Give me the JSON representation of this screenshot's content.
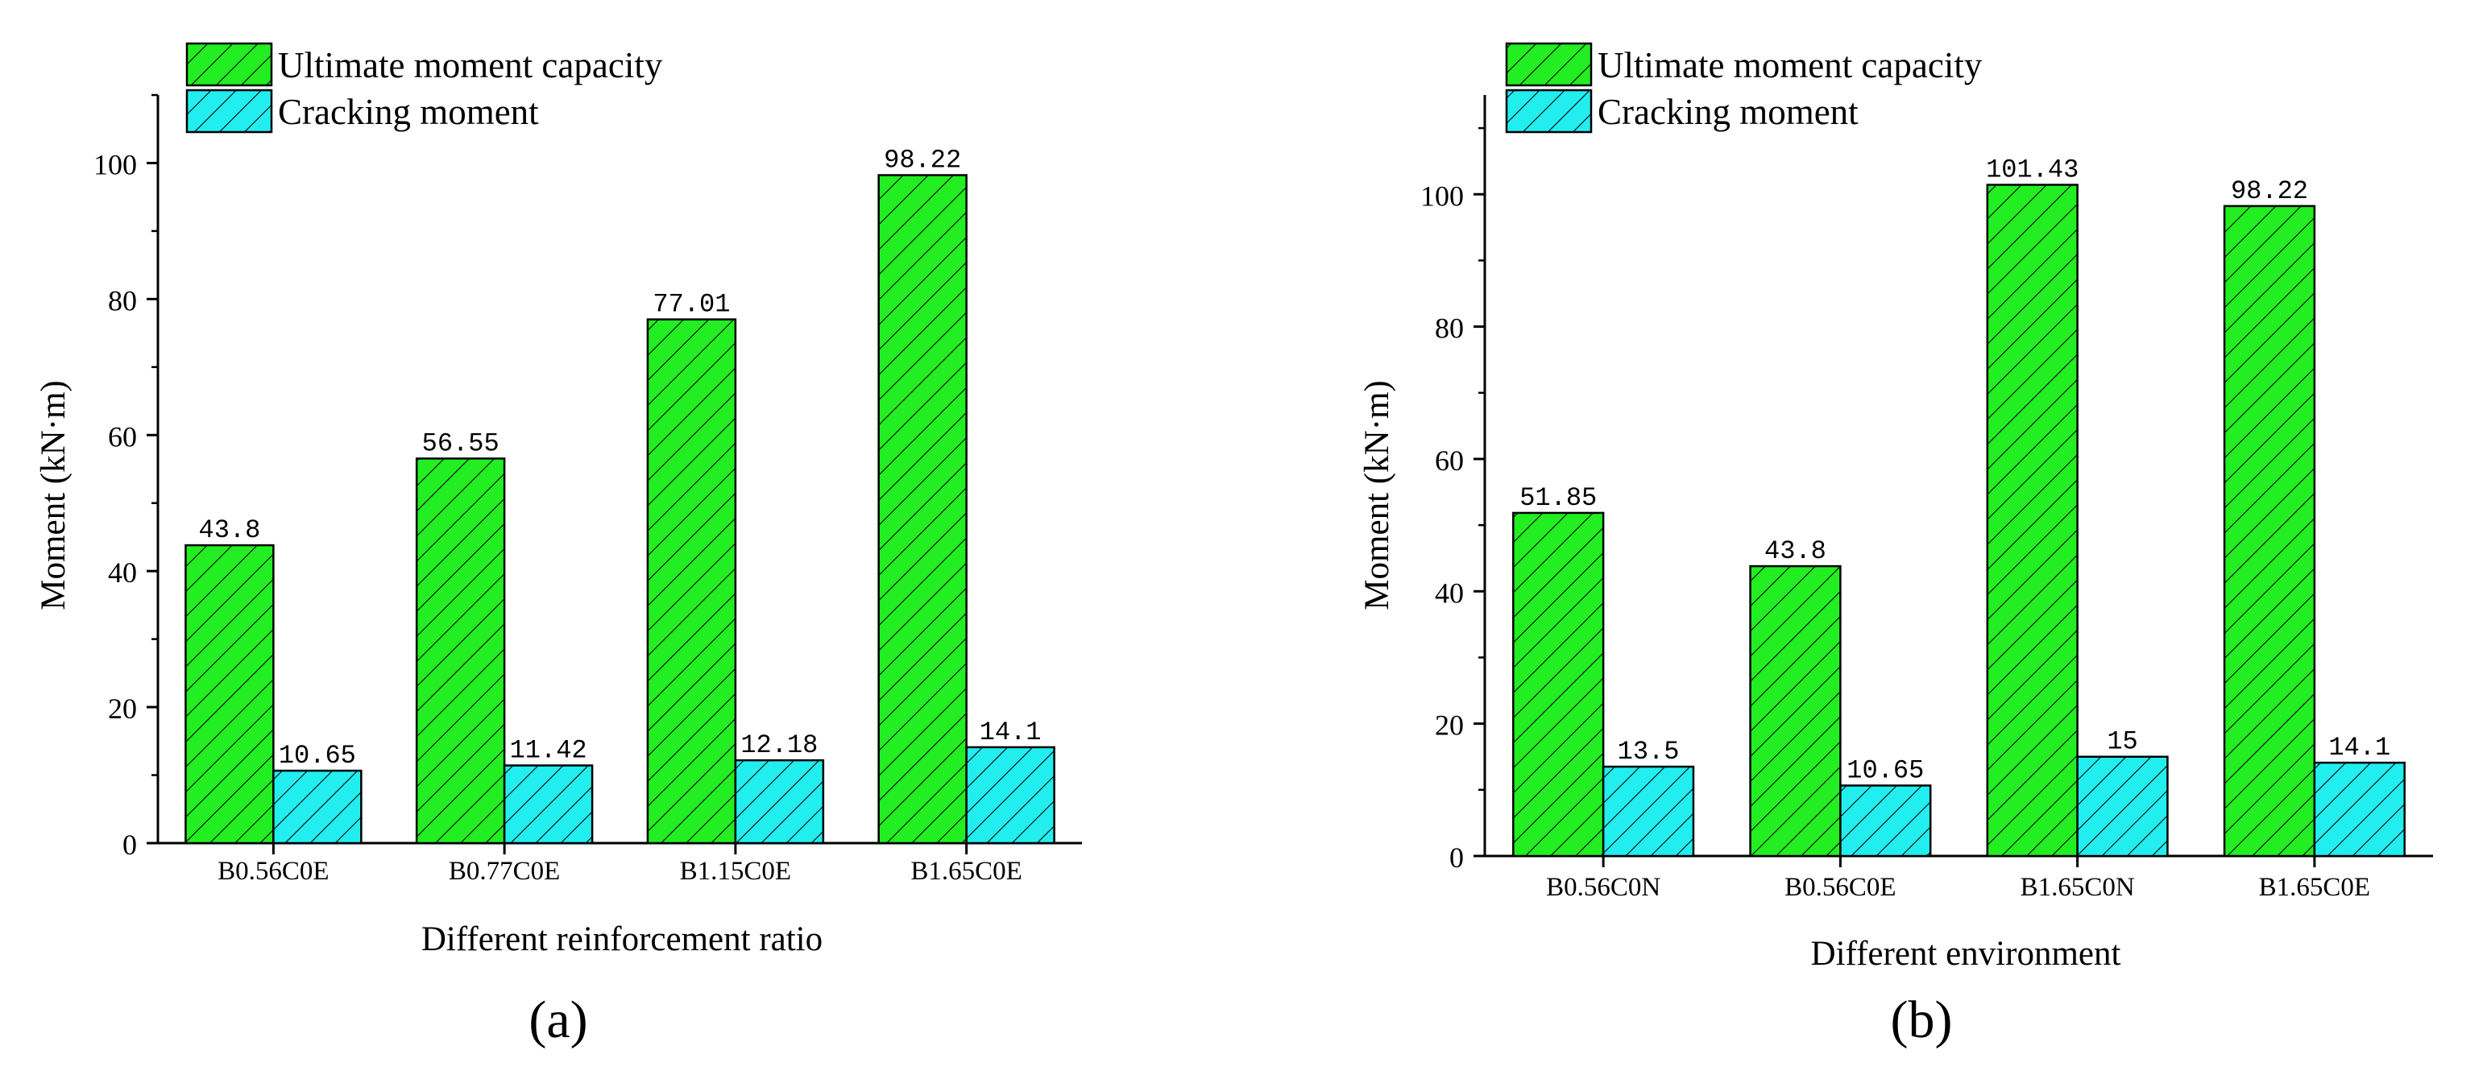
{
  "colors": {
    "ultimate": "#22ee22",
    "cracking": "#22eef0",
    "stroke": "#000000"
  },
  "chart_data": [
    {
      "type": "bar",
      "panel_label": "(a)",
      "xlabel": "Different reinforcement ratio",
      "ylabel": "Moment (kN·m)",
      "ylim": [
        0,
        110
      ],
      "yticks": [
        "0",
        "20",
        "40",
        "60",
        "80",
        "100"
      ],
      "categories": [
        "B0.56C0E",
        "B0.77C0E",
        "B1.15C0E",
        "B1.65C0E"
      ],
      "legend_position": "top-left",
      "series": [
        {
          "name": "Ultimate moment capacity",
          "values": [
            43.8,
            56.55,
            77.01,
            98.22
          ],
          "labels": [
            "43.8",
            "56.55",
            "77.01",
            "98.22"
          ]
        },
        {
          "name": "Cracking moment",
          "values": [
            10.65,
            11.42,
            12.18,
            14.1
          ],
          "labels": [
            "10.65",
            "11.42",
            "12.18",
            "14.1"
          ]
        }
      ]
    },
    {
      "type": "bar",
      "panel_label": "(b)",
      "xlabel": "Different environment",
      "ylabel": "Moment (kN·m)",
      "ylim": [
        0,
        115
      ],
      "yticks": [
        "0",
        "20",
        "40",
        "60",
        "80",
        "100"
      ],
      "categories": [
        "B0.56C0N",
        "B0.56C0E",
        "B1.65C0N",
        "B1.65C0E"
      ],
      "legend_position": "top-left",
      "series": [
        {
          "name": "Ultimate moment capacity",
          "values": [
            51.85,
            43.8,
            101.43,
            98.22
          ],
          "labels": [
            "51.85",
            "43.8",
            "101.43",
            "98.22"
          ]
        },
        {
          "name": "Cracking moment",
          "values": [
            13.5,
            10.65,
            15,
            14.1
          ],
          "labels": [
            "13.5",
            "10.65",
            "15",
            "14.1"
          ]
        }
      ]
    }
  ]
}
